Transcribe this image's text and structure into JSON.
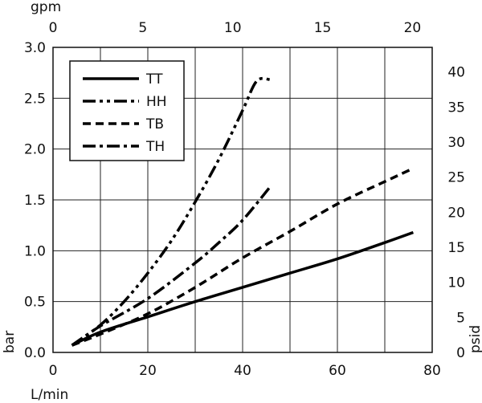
{
  "chart_data": {
    "type": "line",
    "title": "",
    "x_bottom": {
      "label": "L/min",
      "range": [
        0,
        80
      ],
      "ticks": [
        "0",
        "20",
        "40",
        "60",
        "80"
      ]
    },
    "x_top": {
      "label": "gpm",
      "range": [
        0,
        21.1
      ],
      "ticks": [
        "0",
        "5",
        "10",
        "15",
        "20"
      ]
    },
    "y_left": {
      "label": "bar",
      "range": [
        0,
        3.0
      ],
      "ticks": [
        "0.0",
        "0.5",
        "1.0",
        "1.5",
        "2.0",
        "2.5",
        "3.0"
      ]
    },
    "y_right": {
      "label": "psid",
      "range": [
        0,
        43.5
      ],
      "ticks": [
        "0",
        "5",
        "10",
        "15",
        "20",
        "25",
        "30",
        "35",
        "40"
      ]
    },
    "grid": true,
    "legend_position": "top-left",
    "series": [
      {
        "name": "TT",
        "dash": "solid",
        "x": [
          4,
          10,
          20,
          30,
          40,
          50,
          60,
          70,
          76
        ],
        "y": [
          0.07,
          0.2,
          0.35,
          0.5,
          0.64,
          0.78,
          0.92,
          1.08,
          1.18
        ]
      },
      {
        "name": "HH",
        "dash": "dashdotdot",
        "x": [
          4,
          10,
          15,
          20,
          25,
          30,
          35,
          40,
          43,
          46
        ],
        "y": [
          0.07,
          0.27,
          0.5,
          0.78,
          1.1,
          1.48,
          1.9,
          2.38,
          2.67,
          2.68
        ]
      },
      {
        "name": "TB",
        "dash": "dashed",
        "x": [
          4,
          10,
          20,
          30,
          40,
          50,
          60,
          70,
          76
        ],
        "y": [
          0.07,
          0.18,
          0.38,
          0.64,
          0.93,
          1.19,
          1.46,
          1.68,
          1.81
        ]
      },
      {
        "name": "TH",
        "dash": "dashdot",
        "x": [
          4,
          10,
          20,
          30,
          35,
          40,
          46
        ],
        "y": [
          0.07,
          0.26,
          0.53,
          0.88,
          1.08,
          1.3,
          1.64
        ]
      }
    ]
  }
}
